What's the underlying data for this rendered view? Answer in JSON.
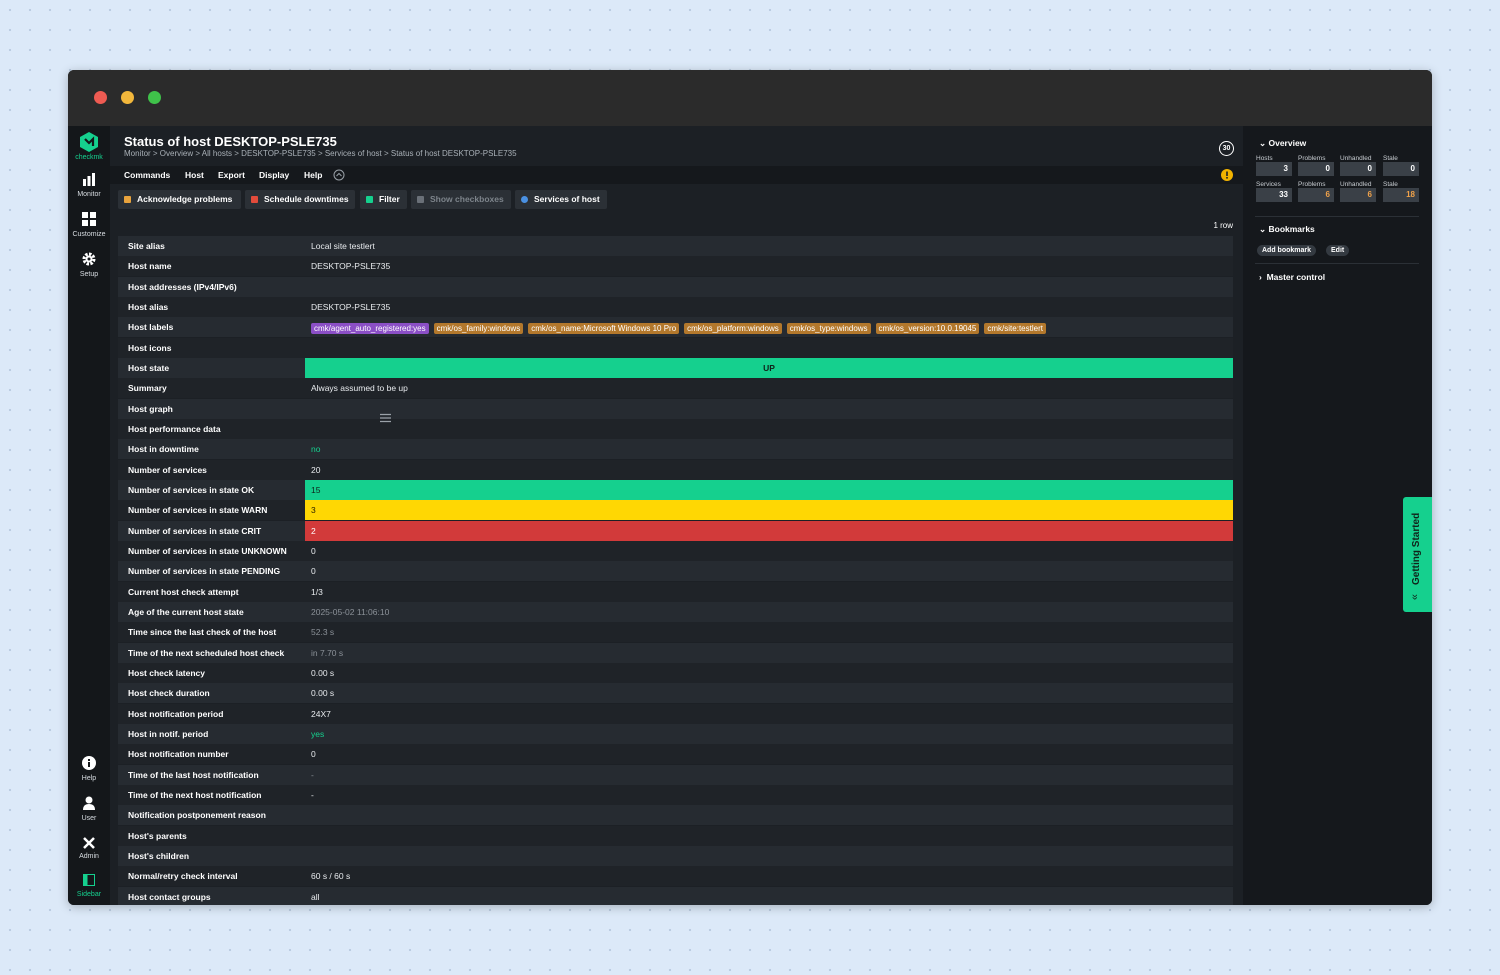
{
  "nav": {
    "brand": "checkmk",
    "top": [
      "Monitor",
      "Customize",
      "Setup"
    ],
    "bottom": [
      "Help",
      "User",
      "Admin",
      "Sidebar"
    ]
  },
  "header": {
    "title": "Status of host DESKTOP-PSLE735",
    "breadcrumb": "Monitor > Overview > All hosts > DESKTOP-PSLE735 > Services of host > Status of host DESKTOP-PSLE735",
    "refresh": "30"
  },
  "menu": [
    "Commands",
    "Host",
    "Export",
    "Display",
    "Help"
  ],
  "toolbar": [
    "Acknowledge problems",
    "Schedule downtimes",
    "Filter",
    "Show checkboxes",
    "Services of host"
  ],
  "row_count": "1 row",
  "table": {
    "rows": [
      {
        "label": "Site alias",
        "value": "Local site testlert"
      },
      {
        "label": "Host name",
        "value": "DESKTOP-PSLE735"
      },
      {
        "label": "Host addresses (IPv4/IPv6)"
      },
      {
        "label": "Host alias",
        "value": "DESKTOP-PSLE735"
      },
      {
        "label": "Host labels",
        "labels": [
          {
            "text": "cmk/agent_auto_registered:yes",
            "color": "#8b4fc6"
          },
          {
            "text": "cmk/os_family:windows",
            "color": "#b3782c"
          },
          {
            "text": "cmk/os_name:Microsoft Windows 10 Pro",
            "color": "#b3782c"
          },
          {
            "text": "cmk/os_platform:windows",
            "color": "#b3782c"
          },
          {
            "text": "cmk/os_type:windows",
            "color": "#b3782c"
          },
          {
            "text": "cmk/os_version:10.0.19045",
            "color": "#b3782c"
          },
          {
            "text": "cmk/site:testlert",
            "color": "#b3782c"
          }
        ]
      },
      {
        "label": "Host icons"
      },
      {
        "label": "Host state",
        "value": "UP",
        "bar_color": "#15d08e",
        "text_color": "#10231a",
        "align": "center"
      },
      {
        "label": "Summary",
        "value": "Always assumed to be up"
      },
      {
        "label": "Host graph"
      },
      {
        "label": "Host performance data"
      },
      {
        "label": "Host in downtime",
        "value": "no",
        "text_color": "#15d08e"
      },
      {
        "label": "Number of services",
        "value": "20"
      },
      {
        "label": "Number of services in state OK",
        "value": "15",
        "bar_color": "#15d08e",
        "text_color": "#10231a"
      },
      {
        "label": "Number of services in state WARN",
        "value": "3",
        "bar_color": "#ffd703",
        "text_color": "#2a2200"
      },
      {
        "label": "Number of services in state CRIT",
        "value": "2",
        "bar_color": "#d23a3a",
        "text_color": "#ffffff"
      },
      {
        "label": "Number of services in state UNKNOWN",
        "value": "0"
      },
      {
        "label": "Number of services in state PENDING",
        "value": "0"
      },
      {
        "label": "Current host check attempt",
        "value": "1/3"
      },
      {
        "label": "Age of the current host state",
        "value": "2025-05-02 11:06:10",
        "text_color": "#8b9198"
      },
      {
        "label": "Time since the last check of the host",
        "value": "52.3 s",
        "text_color": "#8b9198"
      },
      {
        "label": "Time of the next scheduled host check",
        "value": "in 7.70 s",
        "text_color": "#8b9198"
      },
      {
        "label": "Host check latency",
        "value": "0.00 s"
      },
      {
        "label": "Host check duration",
        "value": "0.00 s"
      },
      {
        "label": "Host notification period",
        "value": "24X7"
      },
      {
        "label": "Host in notif. period",
        "value": "yes",
        "text_color": "#15d08e"
      },
      {
        "label": "Host notification number",
        "value": "0"
      },
      {
        "label": "Time of the last host notification",
        "value": "-",
        "text_color": "#8b9198"
      },
      {
        "label": "Time of the next host notification",
        "value": "-"
      },
      {
        "label": "Notification postponement reason"
      },
      {
        "label": "Host's parents"
      },
      {
        "label": "Host's children"
      },
      {
        "label": "Normal/retry check interval",
        "value": "60 s / 60 s"
      },
      {
        "label": "Host contact groups",
        "value": "all"
      }
    ]
  },
  "sidebar": {
    "overview": {
      "title": "Overview",
      "hosts": {
        "headers": [
          "Hosts",
          "Problems",
          "Unhandled",
          "Stale"
        ],
        "values": [
          "3",
          "0",
          "0",
          "0"
        ]
      },
      "services": {
        "headers": [
          "Services",
          "Problems",
          "Unhandled",
          "Stale"
        ],
        "values": [
          "33",
          "6",
          "6",
          "18"
        ],
        "colors": [
          "#ffffff",
          "#f0a24a",
          "#f0a24a",
          "#f0a24a"
        ]
      }
    },
    "bookmarks": {
      "title": "Bookmarks",
      "buttons": [
        "Add bookmark",
        "Edit"
      ]
    },
    "master_control": "Master control"
  },
  "getting_started": "Getting Started"
}
